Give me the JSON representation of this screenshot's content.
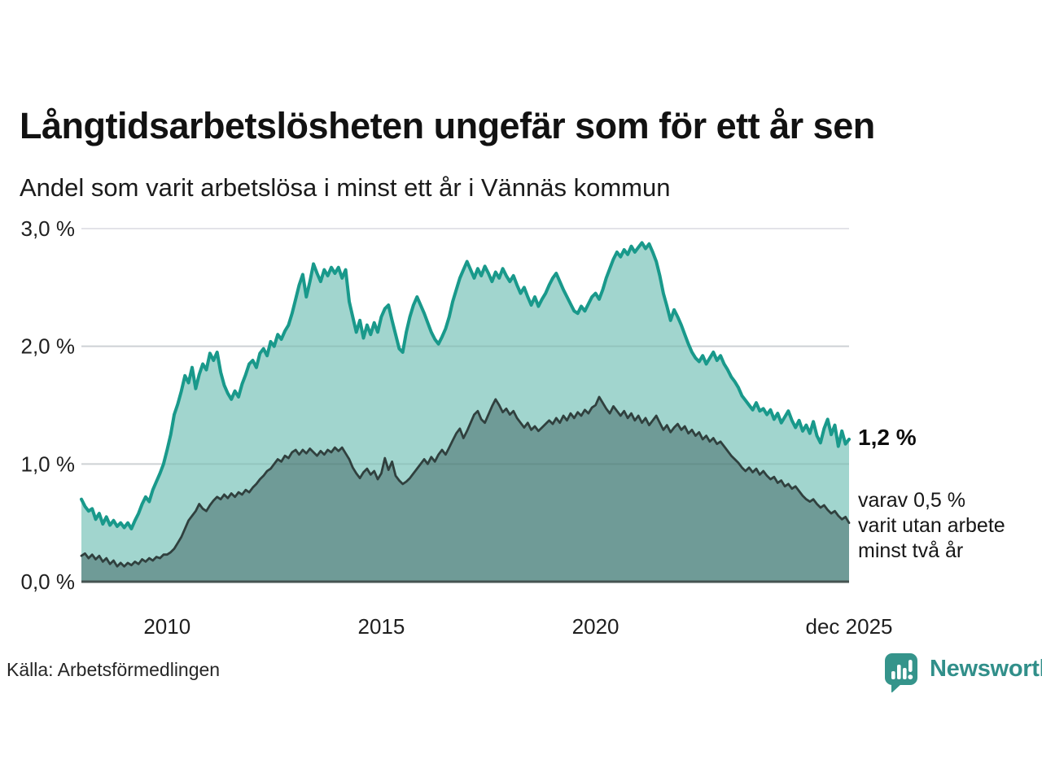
{
  "title": "Långtidsarbetslösheten ungefär som för ett år sen",
  "subtitle": "Andel som varit arbetslösa i minst ett år i Vännäs kommun",
  "annotations": {
    "latest_value": "1,2 %",
    "secondary_lines": [
      "varav 0,5 %",
      "varit utan arbete",
      "minst två år"
    ]
  },
  "source": "Källa: Arbetsförmedlingen",
  "branding": {
    "name": "Newsworthy",
    "logo_icon": "bar-chart-speech-bubble",
    "color": "#318f8a"
  },
  "colors": {
    "grid": "#e3e3e8",
    "grid_overlay": "rgba(30,55,50,0.10)",
    "axis_text": "#1f1f1f",
    "baseline": "#455351"
  },
  "chart_data": {
    "type": "area",
    "title": "Långtidsarbetslösheten ungefär som för ett år sen",
    "subtitle": "Andel som varit arbetslösa i minst ett år i Vännäs kommun",
    "unit": "%",
    "x_start": "2008-01",
    "x_end": "2025-12",
    "x_frequency": "monthly",
    "ylim": [
      0,
      3
    ],
    "grid": true,
    "legend_position": "right-annotations",
    "y_ticks": [
      {
        "label": "0,0 %",
        "value": 0
      },
      {
        "label": "1,0 %",
        "value": 1
      },
      {
        "label": "2,0 %",
        "value": 2
      },
      {
        "label": "3,0 %",
        "value": 3
      }
    ],
    "x_ticks": [
      {
        "label": "2010",
        "month_index": 24
      },
      {
        "label": "2015",
        "month_index": 84
      },
      {
        "label": "2020",
        "month_index": 144
      },
      {
        "label": "dec 2025",
        "month_index": 215
      }
    ],
    "series": [
      {
        "name": "Andel arbetslösa minst ett år",
        "end_label": "1,2 %",
        "latest_value": 1.2,
        "line_color": "#19998b",
        "fill_color": "#a1d5ce",
        "line_width": 4,
        "values": [
          0.7,
          0.64,
          0.6,
          0.62,
          0.53,
          0.58,
          0.49,
          0.55,
          0.48,
          0.52,
          0.47,
          0.5,
          0.46,
          0.5,
          0.45,
          0.52,
          0.58,
          0.66,
          0.72,
          0.68,
          0.78,
          0.85,
          0.92,
          1.0,
          1.12,
          1.25,
          1.42,
          1.51,
          1.62,
          1.75,
          1.69,
          1.82,
          1.64,
          1.76,
          1.85,
          1.8,
          1.94,
          1.88,
          1.95,
          1.78,
          1.67,
          1.6,
          1.55,
          1.62,
          1.57,
          1.68,
          1.76,
          1.85,
          1.88,
          1.82,
          1.94,
          1.98,
          1.92,
          2.04,
          2.0,
          2.1,
          2.06,
          2.13,
          2.18,
          2.28,
          2.4,
          2.52,
          2.61,
          2.42,
          2.55,
          2.7,
          2.62,
          2.55,
          2.65,
          2.6,
          2.67,
          2.62,
          2.67,
          2.58,
          2.65,
          2.38,
          2.25,
          2.12,
          2.22,
          2.07,
          2.18,
          2.1,
          2.2,
          2.12,
          2.25,
          2.32,
          2.35,
          2.22,
          2.1,
          1.98,
          1.95,
          2.12,
          2.25,
          2.35,
          2.42,
          2.35,
          2.28,
          2.2,
          2.12,
          2.06,
          2.02,
          2.08,
          2.15,
          2.25,
          2.38,
          2.48,
          2.58,
          2.65,
          2.72,
          2.65,
          2.58,
          2.66,
          2.6,
          2.68,
          2.62,
          2.55,
          2.63,
          2.58,
          2.66,
          2.6,
          2.55,
          2.6,
          2.52,
          2.45,
          2.5,
          2.42,
          2.35,
          2.42,
          2.34,
          2.4,
          2.45,
          2.52,
          2.58,
          2.62,
          2.55,
          2.48,
          2.42,
          2.36,
          2.3,
          2.28,
          2.34,
          2.3,
          2.36,
          2.42,
          2.45,
          2.4,
          2.48,
          2.58,
          2.66,
          2.74,
          2.8,
          2.76,
          2.82,
          2.78,
          2.85,
          2.8,
          2.84,
          2.88,
          2.83,
          2.87,
          2.8,
          2.72,
          2.6,
          2.45,
          2.34,
          2.22,
          2.31,
          2.25,
          2.18,
          2.1,
          2.02,
          1.95,
          1.9,
          1.87,
          1.92,
          1.85,
          1.9,
          1.95,
          1.88,
          1.92,
          1.85,
          1.8,
          1.74,
          1.7,
          1.65,
          1.58,
          1.54,
          1.5,
          1.46,
          1.52,
          1.45,
          1.47,
          1.42,
          1.46,
          1.38,
          1.43,
          1.35,
          1.4,
          1.45,
          1.37,
          1.31,
          1.37,
          1.28,
          1.33,
          1.26,
          1.36,
          1.24,
          1.18,
          1.3,
          1.38,
          1.25,
          1.33,
          1.15,
          1.28,
          1.17,
          1.21
        ]
      },
      {
        "name": "Varav utan arbete minst två år",
        "end_label": "varav 0,5 %",
        "latest_value": 0.5,
        "line_color": "#30403e",
        "fill_color": "#6f9b97",
        "line_width": 2.8,
        "values": [
          0.22,
          0.24,
          0.2,
          0.23,
          0.19,
          0.22,
          0.17,
          0.2,
          0.15,
          0.18,
          0.13,
          0.16,
          0.13,
          0.16,
          0.14,
          0.17,
          0.15,
          0.19,
          0.17,
          0.2,
          0.18,
          0.21,
          0.2,
          0.23,
          0.23,
          0.25,
          0.28,
          0.33,
          0.38,
          0.45,
          0.52,
          0.56,
          0.6,
          0.66,
          0.62,
          0.6,
          0.65,
          0.69,
          0.72,
          0.7,
          0.74,
          0.71,
          0.75,
          0.72,
          0.76,
          0.74,
          0.78,
          0.76,
          0.8,
          0.83,
          0.87,
          0.9,
          0.94,
          0.96,
          1.0,
          1.04,
          1.02,
          1.07,
          1.05,
          1.1,
          1.12,
          1.08,
          1.12,
          1.09,
          1.13,
          1.1,
          1.07,
          1.11,
          1.08,
          1.12,
          1.1,
          1.14,
          1.11,
          1.14,
          1.09,
          1.04,
          0.97,
          0.92,
          0.88,
          0.93,
          0.96,
          0.91,
          0.94,
          0.87,
          0.92,
          1.05,
          0.95,
          1.02,
          0.9,
          0.86,
          0.83,
          0.85,
          0.88,
          0.92,
          0.96,
          1.0,
          1.04,
          1.0,
          1.06,
          1.02,
          1.08,
          1.12,
          1.08,
          1.14,
          1.2,
          1.26,
          1.3,
          1.22,
          1.28,
          1.35,
          1.42,
          1.45,
          1.38,
          1.35,
          1.42,
          1.49,
          1.55,
          1.5,
          1.44,
          1.47,
          1.42,
          1.45,
          1.39,
          1.35,
          1.31,
          1.35,
          1.29,
          1.32,
          1.28,
          1.31,
          1.34,
          1.37,
          1.34,
          1.39,
          1.35,
          1.41,
          1.37,
          1.43,
          1.39,
          1.44,
          1.41,
          1.46,
          1.43,
          1.48,
          1.5,
          1.57,
          1.52,
          1.47,
          1.43,
          1.49,
          1.45,
          1.41,
          1.45,
          1.39,
          1.43,
          1.37,
          1.41,
          1.35,
          1.39,
          1.33,
          1.37,
          1.41,
          1.35,
          1.29,
          1.33,
          1.27,
          1.31,
          1.34,
          1.29,
          1.32,
          1.26,
          1.29,
          1.24,
          1.27,
          1.21,
          1.24,
          1.19,
          1.22,
          1.17,
          1.19,
          1.15,
          1.11,
          1.07,
          1.04,
          1.01,
          0.97,
          0.94,
          0.97,
          0.93,
          0.96,
          0.91,
          0.94,
          0.9,
          0.87,
          0.89,
          0.84,
          0.86,
          0.81,
          0.83,
          0.79,
          0.81,
          0.77,
          0.73,
          0.7,
          0.68,
          0.7,
          0.66,
          0.63,
          0.65,
          0.61,
          0.58,
          0.6,
          0.56,
          0.53,
          0.55,
          0.5
        ]
      }
    ]
  }
}
